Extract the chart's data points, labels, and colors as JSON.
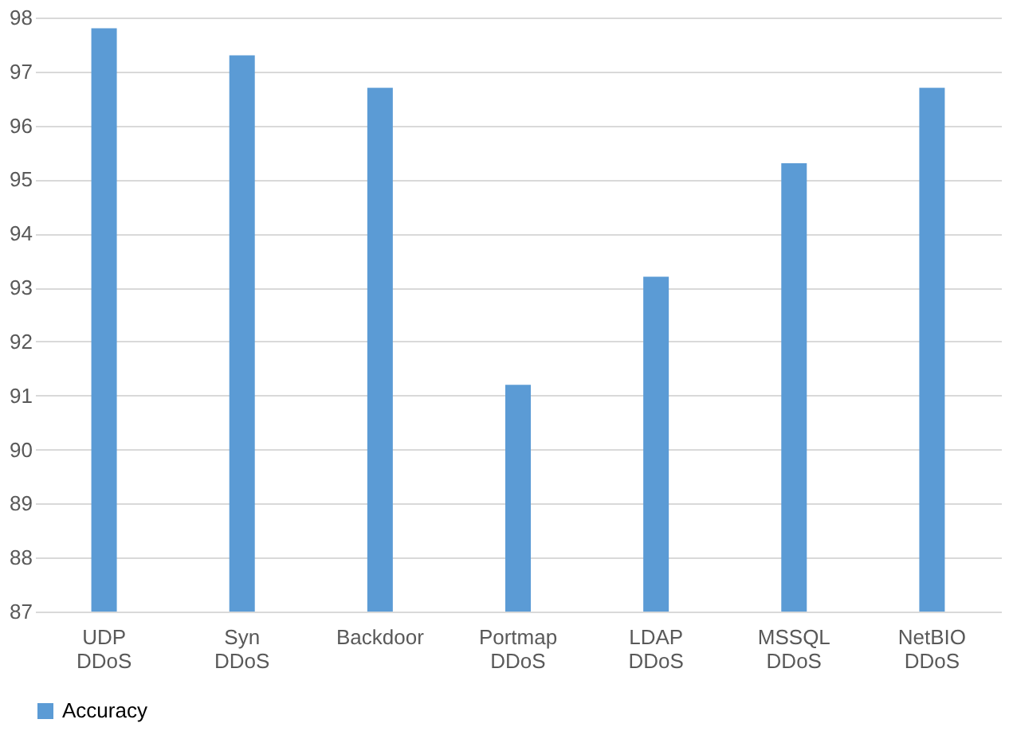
{
  "chart_data": {
    "type": "bar",
    "categories": [
      "UDP DDoS",
      "Syn DDoS",
      "Backdoor",
      "Portmap DDoS",
      "LDAP DDoS",
      "MSSQL DDoS",
      "NetBIO DDoS"
    ],
    "series": [
      {
        "name": "Accuracy",
        "color": "#5b9bd5",
        "values": [
          97.8,
          97.3,
          96.7,
          91.2,
          93.2,
          95.3,
          96.7
        ]
      }
    ],
    "ylim": [
      87,
      98
    ],
    "yticks": [
      87,
      88,
      89,
      90,
      91,
      92,
      93,
      94,
      95,
      96,
      97,
      98
    ],
    "grid": "y",
    "legend": "bottom"
  }
}
